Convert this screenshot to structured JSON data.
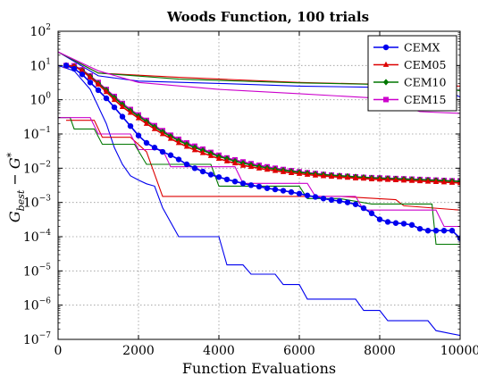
{
  "chart_data": {
    "type": "line",
    "title": "Woods Function, 100 trials",
    "xlabel": "Function Evaluations",
    "ylabel": {
      "main": "G",
      "sub": "best",
      "minus": " − ",
      "main2": "G",
      "sup": "*"
    },
    "xlim": [
      0,
      10000
    ],
    "ylim": [
      1e-07,
      100
    ],
    "yscale": "log",
    "grid": true,
    "legend_placement": "top-right",
    "x_ticks": [
      "0",
      "2000",
      "4000",
      "6000",
      "8000",
      "10000"
    ],
    "y_ticks": [
      {
        "base": "10",
        "exp": "2"
      },
      {
        "base": "10",
        "exp": "1"
      },
      {
        "base": "10",
        "exp": "0"
      },
      {
        "base": "10",
        "exp": "−1"
      },
      {
        "base": "10",
        "exp": "−2"
      },
      {
        "base": "10",
        "exp": "−3"
      },
      {
        "base": "10",
        "exp": "−4"
      },
      {
        "base": "10",
        "exp": "−5"
      },
      {
        "base": "10",
        "exp": "−6"
      },
      {
        "base": "10",
        "exp": "−7"
      }
    ],
    "legend": [
      {
        "name": "CEMX",
        "color": "#0000ee",
        "marker": "circle"
      },
      {
        "name": "CEM05",
        "color": "#dd0000",
        "marker": "triangle"
      },
      {
        "name": "CEM10",
        "color": "#007700",
        "marker": "diamond"
      },
      {
        "name": "CEM15",
        "color": "#cc00cc",
        "marker": "square"
      }
    ],
    "series": [
      {
        "name": "CEMX",
        "color": "#0000ee",
        "marker": "circle",
        "x": [
          200,
          400,
          600,
          800,
          1000,
          1200,
          1400,
          1600,
          1800,
          2000,
          2200,
          2400,
          2600,
          2800,
          3000,
          3200,
          3400,
          3600,
          3800,
          4000,
          4200,
          4400,
          4600,
          4800,
          5000,
          5200,
          5400,
          5600,
          5800,
          6000,
          6200,
          6400,
          6600,
          6800,
          7000,
          7200,
          7400,
          7600,
          7800,
          8000,
          8200,
          8400,
          8600,
          8800,
          9000,
          9200,
          9400,
          9600,
          9800,
          10000
        ],
        "y": [
          10,
          8,
          5.5,
          3.2,
          1.9,
          1.1,
          0.6,
          0.32,
          0.17,
          0.09,
          0.055,
          0.04,
          0.03,
          0.024,
          0.018,
          0.013,
          0.01,
          0.008,
          0.0065,
          0.0055,
          0.0047,
          0.0041,
          0.0036,
          0.0032,
          0.0029,
          0.0026,
          0.0024,
          0.0022,
          0.002,
          0.0018,
          0.0016,
          0.00145,
          0.0013,
          0.00118,
          0.0011,
          0.001,
          0.00088,
          0.00068,
          0.00048,
          0.00032,
          0.00027,
          0.00025,
          0.00024,
          0.00022,
          0.00017,
          0.00015,
          0.00015,
          0.00015,
          0.00015,
          9e-05
        ]
      },
      {
        "name": "CEM05",
        "color": "#dd0000",
        "marker": "triangle",
        "x": [
          200,
          400,
          600,
          800,
          1000,
          1200,
          1400,
          1600,
          1800,
          2000,
          2200,
          2400,
          2600,
          2800,
          3000,
          3200,
          3400,
          3600,
          3800,
          4000,
          4200,
          4400,
          4600,
          4800,
          5000,
          5200,
          5400,
          5600,
          5800,
          6000,
          6200,
          6400,
          6600,
          6800,
          7000,
          7200,
          7400,
          7600,
          7800,
          8000,
          8200,
          8400,
          8600,
          8800,
          9000,
          9200,
          9400,
          9600,
          9800,
          10000
        ],
        "y": [
          10,
          9.5,
          7,
          4.5,
          2.8,
          1.7,
          1.0,
          0.62,
          0.42,
          0.29,
          0.2,
          0.14,
          0.1,
          0.073,
          0.055,
          0.043,
          0.034,
          0.028,
          0.023,
          0.019,
          0.016,
          0.014,
          0.012,
          0.011,
          0.0099,
          0.0091,
          0.0084,
          0.0078,
          0.0073,
          0.0069,
          0.0065,
          0.0062,
          0.0059,
          0.0057,
          0.0055,
          0.0053,
          0.0051,
          0.005,
          0.0048,
          0.0047,
          0.0046,
          0.0045,
          0.0044,
          0.0043,
          0.0042,
          0.0041,
          0.004,
          0.0039,
          0.0038,
          0.0037
        ]
      },
      {
        "name": "CEM10",
        "color": "#007700",
        "marker": "diamond",
        "x": [
          200,
          400,
          600,
          800,
          1000,
          1200,
          1400,
          1600,
          1800,
          2000,
          2200,
          2400,
          2600,
          2800,
          3000,
          3200,
          3400,
          3600,
          3800,
          4000,
          4200,
          4400,
          4600,
          4800,
          5000,
          5200,
          5400,
          5600,
          5800,
          6000,
          6200,
          6400,
          6600,
          6800,
          7000,
          7200,
          7400,
          7600,
          7800,
          8000,
          8200,
          8400,
          8600,
          8800,
          9000,
          9200,
          9400,
          9600,
          9800,
          10000
        ],
        "y": [
          10,
          9.5,
          7.2,
          4.8,
          3.0,
          1.9,
          1.15,
          0.72,
          0.48,
          0.33,
          0.23,
          0.16,
          0.115,
          0.085,
          0.064,
          0.05,
          0.04,
          0.033,
          0.027,
          0.022,
          0.019,
          0.016,
          0.014,
          0.0125,
          0.0112,
          0.0102,
          0.0094,
          0.0087,
          0.0081,
          0.0076,
          0.0072,
          0.0068,
          0.0065,
          0.0062,
          0.006,
          0.0058,
          0.0056,
          0.0054,
          0.0052,
          0.0051,
          0.005,
          0.0049,
          0.0048,
          0.0047,
          0.0046,
          0.0045,
          0.0044,
          0.0043,
          0.0042,
          0.0041
        ]
      },
      {
        "name": "CEM15",
        "color": "#cc00cc",
        "marker": "square",
        "x": [
          200,
          400,
          600,
          800,
          1000,
          1200,
          1400,
          1600,
          1800,
          2000,
          2200,
          2400,
          2600,
          2800,
          3000,
          3200,
          3400,
          3600,
          3800,
          4000,
          4200,
          4400,
          4600,
          4800,
          5000,
          5200,
          5400,
          5600,
          5800,
          6000,
          6200,
          6400,
          6600,
          6800,
          7000,
          7200,
          7400,
          7600,
          7800,
          8000,
          8200,
          8400,
          8600,
          8800,
          9000,
          9200,
          9400,
          9600,
          9800,
          10000
        ],
        "y": [
          10,
          9.8,
          7.5,
          5.0,
          3.2,
          2.0,
          1.25,
          0.78,
          0.52,
          0.36,
          0.25,
          0.175,
          0.125,
          0.092,
          0.07,
          0.055,
          0.044,
          0.036,
          0.029,
          0.024,
          0.02,
          0.0175,
          0.0153,
          0.0136,
          0.0122,
          0.011,
          0.01,
          0.0092,
          0.0085,
          0.0079,
          0.0074,
          0.007,
          0.0066,
          0.0063,
          0.006,
          0.0058,
          0.0056,
          0.0054,
          0.0053,
          0.0052,
          0.0051,
          0.005,
          0.0049,
          0.0048,
          0.0047,
          0.0046,
          0.0045,
          0.0044,
          0.0043,
          0.0042
        ]
      }
    ],
    "envelope_lines": [
      {
        "color": "#0000ee",
        "points": [
          [
            0,
            25
          ],
          [
            1000,
            5
          ],
          [
            2000,
            3.5
          ],
          [
            4000,
            3
          ],
          [
            6000,
            2.5
          ],
          [
            8000,
            2.3
          ],
          [
            9500,
            2.2
          ],
          [
            10000,
            1.2
          ]
        ]
      },
      {
        "color": "#0000ee",
        "points": [
          [
            0,
            10
          ],
          [
            400,
            7
          ],
          [
            800,
            2
          ],
          [
            1200,
            0.2
          ],
          [
            1400,
            0.04
          ],
          [
            1600,
            0.013
          ],
          [
            1800,
            0.006
          ],
          [
            2000,
            0.0045
          ],
          [
            2200,
            0.0035
          ],
          [
            2400,
            0.003
          ],
          [
            2600,
            0.0007
          ],
          [
            3000,
            0.0001
          ],
          [
            4000,
            0.0001
          ],
          [
            4200,
            1.5e-05
          ],
          [
            4600,
            1.5e-05
          ],
          [
            4800,
            8e-06
          ],
          [
            5400,
            8e-06
          ],
          [
            5600,
            4e-06
          ],
          [
            6000,
            4e-06
          ],
          [
            6200,
            1.5e-06
          ],
          [
            7400,
            1.5e-06
          ],
          [
            7600,
            7e-07
          ],
          [
            8000,
            7e-07
          ],
          [
            8200,
            3.5e-07
          ],
          [
            9200,
            3.5e-07
          ],
          [
            9400,
            1.8e-07
          ],
          [
            10000,
            1.3e-07
          ]
        ]
      },
      {
        "color": "#dd0000",
        "points": [
          [
            0,
            25
          ],
          [
            1000,
            6
          ],
          [
            3000,
            4.5
          ],
          [
            6000,
            3.2
          ],
          [
            10000,
            2.5
          ]
        ]
      },
      {
        "color": "#dd0000",
        "points": [
          [
            200,
            0.25
          ],
          [
            900,
            0.25
          ],
          [
            1100,
            0.08
          ],
          [
            1800,
            0.08
          ],
          [
            2200,
            0.03
          ],
          [
            2600,
            0.0015
          ],
          [
            3000,
            0.0015
          ],
          [
            3400,
            0.0015
          ],
          [
            6200,
            0.0015
          ],
          [
            6400,
            0.0015
          ],
          [
            7000,
            0.0015
          ],
          [
            8400,
            0.0012
          ],
          [
            8600,
            0.0008
          ],
          [
            10000,
            0.0006
          ]
        ]
      },
      {
        "color": "#007700",
        "points": [
          [
            0,
            25
          ],
          [
            1000,
            6
          ],
          [
            3000,
            4
          ],
          [
            6000,
            3.1
          ],
          [
            9500,
            2.6
          ],
          [
            10000,
            1.8
          ]
        ]
      },
      {
        "color": "#007700",
        "points": [
          [
            0,
            0.3
          ],
          [
            300,
            0.3
          ],
          [
            400,
            0.14
          ],
          [
            900,
            0.14
          ],
          [
            1100,
            0.05
          ],
          [
            1900,
            0.05
          ],
          [
            2200,
            0.013
          ],
          [
            3800,
            0.013
          ],
          [
            4000,
            0.003
          ],
          [
            6000,
            0.003
          ],
          [
            6200,
            0.0013
          ],
          [
            6800,
            0.0013
          ],
          [
            7000,
            0.0013
          ],
          [
            7800,
            0.0009
          ],
          [
            9300,
            0.0009
          ],
          [
            9400,
            6e-05
          ],
          [
            10000,
            6e-05
          ]
        ]
      },
      {
        "color": "#cc00cc",
        "points": [
          [
            0,
            25
          ],
          [
            1000,
            7
          ],
          [
            2000,
            3.2
          ],
          [
            4000,
            2.0
          ],
          [
            6000,
            1.5
          ],
          [
            8000,
            1.1
          ],
          [
            9000,
            0.45
          ],
          [
            10000,
            0.4
          ]
        ]
      },
      {
        "color": "#cc00cc",
        "points": [
          [
            0,
            0.3
          ],
          [
            800,
            0.3
          ],
          [
            1000,
            0.1
          ],
          [
            1800,
            0.1
          ],
          [
            2000,
            0.035
          ],
          [
            2600,
            0.035
          ],
          [
            2800,
            0.011
          ],
          [
            4400,
            0.011
          ],
          [
            4600,
            0.0036
          ],
          [
            6200,
            0.0036
          ],
          [
            6400,
            0.0015
          ],
          [
            7400,
            0.0015
          ],
          [
            7600,
            0.0006
          ],
          [
            9400,
            0.0006
          ],
          [
            9600,
            0.0002
          ],
          [
            10000,
            0.0002
          ]
        ]
      }
    ]
  }
}
